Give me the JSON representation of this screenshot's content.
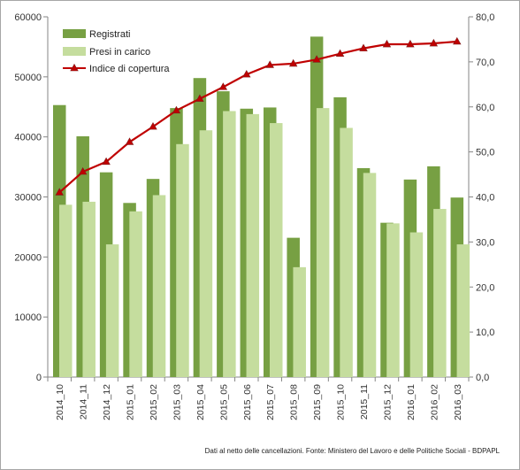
{
  "colors": {
    "registrati": "#77a043",
    "presi_in_carico": "#c5dd9e",
    "indice_line": "#c00000",
    "indice_marker": "#c00000",
    "marker_stroke": "#7f1d1d",
    "axis": "#868686",
    "grid": "#d9d9d9"
  },
  "footnote": "Dati al netto delle cancellazioni. Fonte: Ministero del Lavoro e delle Politiche Sociali - BDPAPL",
  "chart_data": {
    "type": "bar",
    "title": "",
    "xlabel": "",
    "ylabel": "",
    "categories": [
      "2014_10",
      "2014_11",
      "2014_12",
      "2015_01",
      "2015_02",
      "2015_03",
      "2015_04",
      "2015_05",
      "2015_06",
      "2015_07",
      "2015_08",
      "2015_09",
      "2015_10",
      "2015_11",
      "2015_12",
      "2016_01",
      "2016_02",
      "2016_03"
    ],
    "series": [
      {
        "name": "Registrati",
        "type": "bar",
        "axis": "left",
        "values": [
          45300,
          40100,
          34100,
          29000,
          33000,
          44800,
          49800,
          47600,
          44700,
          44900,
          23200,
          56700,
          46600,
          34800,
          25700,
          32900,
          35100,
          29900
        ]
      },
      {
        "name": "Presi in carico",
        "type": "bar",
        "axis": "left",
        "values": [
          28700,
          29200,
          22100,
          27600,
          30300,
          38800,
          41100,
          44300,
          43800,
          42300,
          18300,
          44800,
          41500,
          34000,
          25600,
          24100,
          28000,
          22100
        ]
      },
      {
        "name": "Indice di copertura",
        "type": "line",
        "axis": "right",
        "values": [
          41.0,
          45.6,
          47.8,
          52.2,
          55.6,
          59.2,
          61.8,
          64.4,
          67.2,
          69.3,
          69.6,
          70.5,
          71.8,
          73.0,
          73.9,
          73.9,
          74.1,
          74.5
        ]
      }
    ],
    "y_left": {
      "min": 0,
      "max": 60000,
      "ticks": [
        "0",
        "10000",
        "20000",
        "30000",
        "40000",
        "50000",
        "60000"
      ]
    },
    "y_right": {
      "min": 0,
      "max": 80,
      "ticks": [
        "0,0",
        "10,0",
        "20,0",
        "30,0",
        "40,0",
        "50,0",
        "60,0",
        "70,0",
        "80,0"
      ]
    },
    "legend_position": "top-left",
    "grid": false
  }
}
